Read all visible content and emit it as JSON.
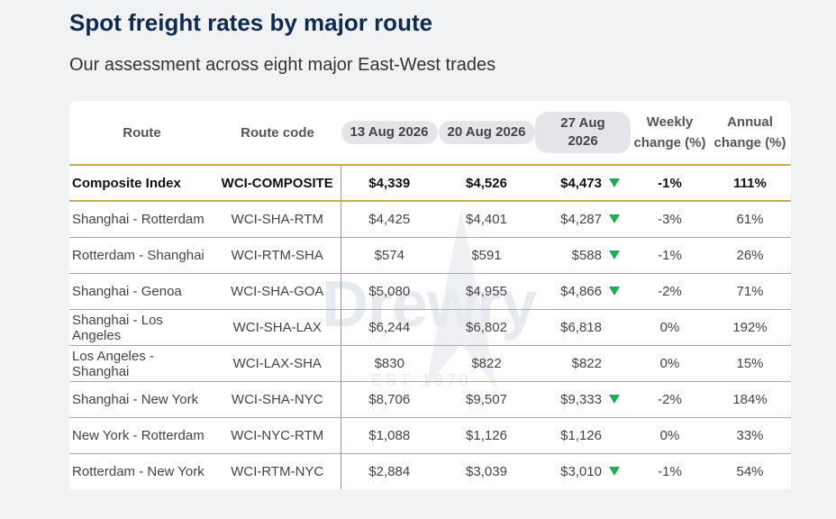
{
  "title": "Spot freight rates by major route",
  "subtitle": "Our assessment across eight major East-West trades",
  "colors": {
    "title": "#0e2a52",
    "divider": "#c9a75c",
    "down_arrow": "#1fae4f"
  },
  "watermark": {
    "text": "Drewry",
    "sub": "EST 1970"
  },
  "chart_data": {
    "type": "table",
    "columns": [
      "Route",
      "Route code",
      "13 Aug 2026",
      "20 Aug 2026",
      "27 Aug 2026",
      "Weekly\nchange (%)",
      "Annual\nchange (%)"
    ],
    "header": {
      "route": "Route",
      "code": "Route code",
      "d1": "13 Aug 2026",
      "d2": "20 Aug 2026",
      "d3": "27 Aug 2026",
      "weekly_l1": "Weekly",
      "weekly_l2": "change (%)",
      "annual_l1": "Annual",
      "annual_l2": "change (%)"
    },
    "rows": [
      {
        "route": "Composite Index",
        "code": "WCI-COMPOSITE",
        "d1": "$4,339",
        "d2": "$4,526",
        "d3": "$4,473",
        "down": true,
        "weekly": "-1%",
        "annual": "111%"
      },
      {
        "route": "Shanghai - Rotterdam",
        "code": "WCI-SHA-RTM",
        "d1": "$4,425",
        "d2": "$4,401",
        "d3": "$4,287",
        "down": true,
        "weekly": "-3%",
        "annual": "61%"
      },
      {
        "route": "Rotterdam - Shanghai",
        "code": "WCI-RTM-SHA",
        "d1": "$574",
        "d2": "$591",
        "d3": "$588",
        "down": true,
        "weekly": "-1%",
        "annual": "26%"
      },
      {
        "route": "Shanghai - Genoa",
        "code": "WCI-SHA-GOA",
        "d1": "$5,080",
        "d2": "$4,955",
        "d3": "$4,866",
        "down": true,
        "weekly": "-2%",
        "annual": "71%"
      },
      {
        "route": "Shanghai - Los Angeles",
        "code": "WCI-SHA-LAX",
        "d1": "$6,244",
        "d2": "$6,802",
        "d3": "$6,818",
        "down": false,
        "weekly": "0%",
        "annual": "192%"
      },
      {
        "route": "Los Angeles - Shanghai",
        "code": "WCI-LAX-SHA",
        "d1": "$830",
        "d2": "$822",
        "d3": "$822",
        "down": false,
        "weekly": "0%",
        "annual": "15%"
      },
      {
        "route": "Shanghai - New York",
        "code": "WCI-SHA-NYC",
        "d1": "$8,706",
        "d2": "$9,507",
        "d3": "$9,333",
        "down": true,
        "weekly": "-2%",
        "annual": "184%"
      },
      {
        "route": "New York - Rotterdam",
        "code": "WCI-NYC-RTM",
        "d1": "$1,088",
        "d2": "$1,126",
        "d3": "$1,126",
        "down": false,
        "weekly": "0%",
        "annual": "33%"
      },
      {
        "route": "Rotterdam - New York",
        "code": "WCI-RTM-NYC",
        "d1": "$2,884",
        "d2": "$3,039",
        "d3": "$3,010",
        "down": true,
        "weekly": "-1%",
        "annual": "54%"
      }
    ]
  }
}
